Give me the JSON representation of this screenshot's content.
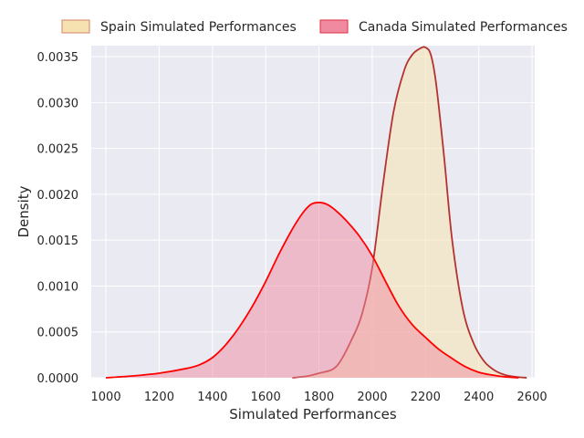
{
  "chart_data": {
    "type": "area",
    "xlabel": "Simulated Performances",
    "ylabel": "Density",
    "xlim": [
      945,
      2610
    ],
    "ylim": [
      0,
      0.00362
    ],
    "xticks": [
      1000,
      1200,
      1400,
      1600,
      1800,
      2000,
      2200,
      2400,
      2600
    ],
    "yticks": [
      0,
      0.0005,
      0.001,
      0.0015,
      0.002,
      0.0025,
      0.003,
      0.0035
    ],
    "ytick_labels": [
      "0.0000",
      "0.0005",
      "0.0010",
      "0.0015",
      "0.0020",
      "0.0025",
      "0.0030",
      "0.0035"
    ],
    "grid": true,
    "legend_position": "top",
    "series": [
      {
        "name": "Spain Simulated Performances",
        "fill": "#f5e2b0",
        "line": "#b5332e",
        "x": [
          1700,
          1760,
          1800,
          1850,
          1880,
          1920,
          1960,
          2000,
          2040,
          2080,
          2120,
          2150,
          2180,
          2200,
          2220,
          2240,
          2270,
          2300,
          2340,
          2380,
          2420,
          2460,
          2500,
          2540,
          2580
        ],
        "y": [
          0,
          2e-05,
          5e-05,
          9e-05,
          0.00018,
          0.0004,
          0.00068,
          0.0012,
          0.0021,
          0.0029,
          0.00335,
          0.00352,
          0.00359,
          0.0036,
          0.00352,
          0.0032,
          0.0024,
          0.0015,
          0.00075,
          0.00038,
          0.00018,
          8e-05,
          3e-05,
          1e-05,
          0
        ]
      },
      {
        "name": "Canada Simulated Performances",
        "fill": "#f08aa0",
        "line": "#ff0000",
        "x": [
          1000,
          1100,
          1200,
          1300,
          1350,
          1400,
          1450,
          1500,
          1550,
          1600,
          1650,
          1700,
          1740,
          1770,
          1800,
          1830,
          1860,
          1900,
          1950,
          2000,
          2050,
          2100,
          2150,
          2200,
          2250,
          2300,
          2350,
          2400,
          2450,
          2500,
          2550
        ],
        "y": [
          0,
          2e-05,
          5e-05,
          0.0001,
          0.00014,
          0.00022,
          0.00036,
          0.00055,
          0.00078,
          0.00105,
          0.00135,
          0.00162,
          0.0018,
          0.00189,
          0.00191,
          0.00189,
          0.00183,
          0.00172,
          0.00155,
          0.00133,
          0.00105,
          0.00078,
          0.00058,
          0.00044,
          0.00031,
          0.00021,
          0.00012,
          6e-05,
          3e-05,
          1e-05,
          0
        ]
      }
    ]
  }
}
